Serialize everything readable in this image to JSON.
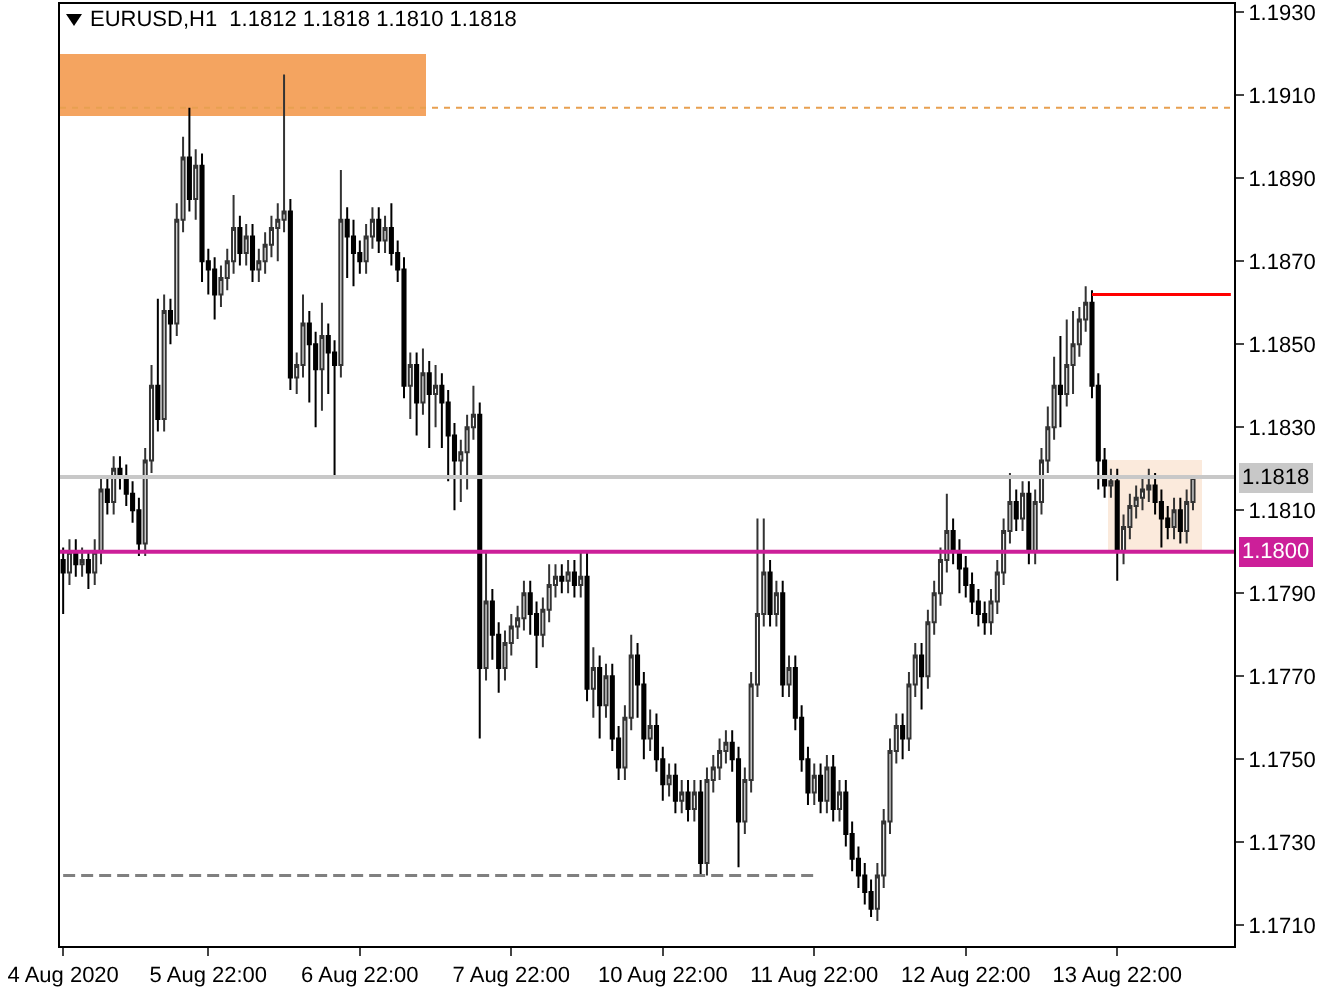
{
  "chart_data": {
    "type": "candlestick",
    "title": "EURUSD,H1  1.1812 1.1818 1.1810 1.1818",
    "categories": [
      "4 Aug 2020",
      null,
      null,
      null,
      null,
      null,
      null,
      null,
      null,
      null,
      null,
      null,
      null,
      null,
      null,
      null,
      null,
      null,
      null,
      null,
      null,
      null,
      null,
      "5 Aug 22:00",
      null,
      null,
      null,
      null,
      null,
      null,
      null,
      null,
      null,
      null,
      null,
      null,
      null,
      null,
      null,
      null,
      null,
      null,
      null,
      null,
      null,
      null,
      null,
      "6 Aug 22:00",
      null,
      null,
      null,
      null,
      null,
      null,
      null,
      null,
      null,
      null,
      null,
      null,
      null,
      null,
      null,
      null,
      null,
      null,
      null,
      null,
      null,
      null,
      null,
      "7 Aug 22:00",
      null,
      null,
      null,
      null,
      null,
      null,
      null,
      null,
      null,
      null,
      null,
      null,
      null,
      null,
      null,
      null,
      null,
      null,
      null,
      null,
      null,
      null,
      null,
      "10 Aug 22:00",
      null,
      null,
      null,
      null,
      null,
      null,
      null,
      null,
      null,
      null,
      null,
      null,
      null,
      null,
      null,
      null,
      null,
      null,
      null,
      null,
      null,
      null,
      null,
      "11 Aug 22:00",
      null,
      null,
      null,
      null,
      null,
      null,
      null,
      null,
      null,
      null,
      null,
      null,
      null,
      null,
      null,
      null,
      null,
      null,
      null,
      null,
      null,
      null,
      null,
      "12 Aug 22:00",
      null,
      null,
      null,
      null,
      null,
      null,
      null,
      null,
      null,
      null,
      null,
      null,
      null,
      null,
      null,
      null,
      null,
      null,
      null,
      null,
      null,
      null,
      null,
      "13 Aug 22:00",
      null,
      null,
      null,
      null,
      null,
      null,
      null,
      null,
      null,
      null,
      null,
      null,
      null,
      null,
      null,
      null,
      null,
      null
    ],
    "ohlc": [
      [
        1.1798,
        1.1801,
        1.1785,
        1.1795
      ],
      [
        1.1795,
        1.1803,
        1.1792,
        1.18
      ],
      [
        1.18,
        1.1803,
        1.1794,
        1.1797
      ],
      [
        1.1797,
        1.1801,
        1.1794,
        1.1798
      ],
      [
        1.1798,
        1.18,
        1.1791,
        1.1795
      ],
      [
        1.1795,
        1.1803,
        1.1792,
        1.18
      ],
      [
        1.18,
        1.1818,
        1.1797,
        1.1815
      ],
      [
        1.1815,
        1.1818,
        1.1809,
        1.1812
      ],
      [
        1.1812,
        1.1823,
        1.1809,
        1.182
      ],
      [
        1.182,
        1.1823,
        1.1815,
        1.1818
      ],
      [
        1.1818,
        1.1821,
        1.1811,
        1.1814
      ],
      [
        1.1814,
        1.1817,
        1.1807,
        1.181
      ],
      [
        1.181,
        1.1813,
        1.1799,
        1.1802
      ],
      [
        1.1802,
        1.1825,
        1.1799,
        1.1822
      ],
      [
        1.1822,
        1.1845,
        1.1819,
        1.184
      ],
      [
        1.184,
        1.1861,
        1.1829,
        1.1832
      ],
      [
        1.1832,
        1.1862,
        1.1829,
        1.1858
      ],
      [
        1.1858,
        1.1861,
        1.185,
        1.1855
      ],
      [
        1.1855,
        1.1884,
        1.1852,
        1.188
      ],
      [
        1.188,
        1.19,
        1.1877,
        1.1895
      ],
      [
        1.1895,
        1.1907,
        1.1882,
        1.1885
      ],
      [
        1.1885,
        1.1897,
        1.188,
        1.1893
      ],
      [
        1.1893,
        1.1896,
        1.1865,
        1.187
      ],
      [
        1.187,
        1.1873,
        1.1862,
        1.1868
      ],
      [
        1.1868,
        1.1871,
        1.1856,
        1.1862
      ],
      [
        1.1862,
        1.1869,
        1.1859,
        1.1866
      ],
      [
        1.1866,
        1.1873,
        1.1863,
        1.187
      ],
      [
        1.187,
        1.1886,
        1.1867,
        1.1878
      ],
      [
        1.1878,
        1.1881,
        1.1869,
        1.1872
      ],
      [
        1.1872,
        1.1879,
        1.1869,
        1.1876
      ],
      [
        1.1876,
        1.1879,
        1.1865,
        1.1868
      ],
      [
        1.1868,
        1.1873,
        1.1865,
        1.187
      ],
      [
        1.187,
        1.1877,
        1.1867,
        1.1874
      ],
      [
        1.1874,
        1.1881,
        1.1871,
        1.1878
      ],
      [
        1.1878,
        1.1884,
        1.187,
        1.188
      ],
      [
        1.188,
        1.1915,
        1.1877,
        1.1882
      ],
      [
        1.1882,
        1.1885,
        1.1839,
        1.1842
      ],
      [
        1.1842,
        1.1848,
        1.1838,
        1.1845
      ],
      [
        1.1845,
        1.1862,
        1.1842,
        1.1855
      ],
      [
        1.1855,
        1.1858,
        1.1836,
        1.185
      ],
      [
        1.185,
        1.1853,
        1.183,
        1.1844
      ],
      [
        1.1844,
        1.186,
        1.1834,
        1.1852
      ],
      [
        1.1852,
        1.1855,
        1.1838,
        1.1848
      ],
      [
        1.1848,
        1.1851,
        1.1818,
        1.1845
      ],
      [
        1.1845,
        1.1892,
        1.1842,
        1.188
      ],
      [
        1.188,
        1.1883,
        1.1866,
        1.1876
      ],
      [
        1.1876,
        1.188,
        1.1864,
        1.1872
      ],
      [
        1.1872,
        1.1875,
        1.1867,
        1.187
      ],
      [
        1.187,
        1.1879,
        1.1867,
        1.1876
      ],
      [
        1.1876,
        1.1883,
        1.1873,
        1.188
      ],
      [
        1.188,
        1.1883,
        1.1872,
        1.1875
      ],
      [
        1.1875,
        1.1881,
        1.1872,
        1.1878
      ],
      [
        1.1878,
        1.1884,
        1.1869,
        1.1872
      ],
      [
        1.1872,
        1.1875,
        1.1865,
        1.1868
      ],
      [
        1.1868,
        1.1871,
        1.1837,
        1.184
      ],
      [
        1.184,
        1.1848,
        1.1832,
        1.1845
      ],
      [
        1.1845,
        1.1848,
        1.1828,
        1.1836
      ],
      [
        1.1836,
        1.1849,
        1.1833,
        1.1843
      ],
      [
        1.1843,
        1.1846,
        1.1825,
        1.1838
      ],
      [
        1.1838,
        1.1845,
        1.183,
        1.184
      ],
      [
        1.184,
        1.1843,
        1.1825,
        1.1836
      ],
      [
        1.1836,
        1.1839,
        1.1817,
        1.1828
      ],
      [
        1.1828,
        1.1831,
        1.181,
        1.1822
      ],
      [
        1.1822,
        1.1827,
        1.1812,
        1.1824
      ],
      [
        1.1824,
        1.1833,
        1.1815,
        1.183
      ],
      [
        1.183,
        1.184,
        1.1827,
        1.1833
      ],
      [
        1.1833,
        1.1836,
        1.1755,
        1.1772
      ],
      [
        1.1772,
        1.18,
        1.1769,
        1.1788
      ],
      [
        1.1788,
        1.1791,
        1.1774,
        1.178
      ],
      [
        1.178,
        1.1783,
        1.1766,
        1.1772
      ],
      [
        1.1772,
        1.1781,
        1.1769,
        1.1778
      ],
      [
        1.1778,
        1.1785,
        1.1775,
        1.1782
      ],
      [
        1.1782,
        1.1787,
        1.1779,
        1.1784
      ],
      [
        1.1784,
        1.1793,
        1.1781,
        1.179
      ],
      [
        1.179,
        1.1793,
        1.178,
        1.1785
      ],
      [
        1.1785,
        1.1788,
        1.1772,
        1.178
      ],
      [
        1.178,
        1.1789,
        1.1777,
        1.1786
      ],
      [
        1.1786,
        1.1797,
        1.1783,
        1.1792
      ],
      [
        1.1792,
        1.1797,
        1.1789,
        1.1794
      ],
      [
        1.1794,
        1.1797,
        1.179,
        1.1793
      ],
      [
        1.1793,
        1.1798,
        1.179,
        1.1795
      ],
      [
        1.1795,
        1.1798,
        1.1789,
        1.1792
      ],
      [
        1.1792,
        1.18,
        1.1789,
        1.1794
      ],
      [
        1.1794,
        1.18,
        1.1764,
        1.1767
      ],
      [
        1.1767,
        1.1777,
        1.176,
        1.1772
      ],
      [
        1.1772,
        1.1775,
        1.1755,
        1.1763
      ],
      [
        1.1763,
        1.1773,
        1.176,
        1.177
      ],
      [
        1.177,
        1.1773,
        1.1752,
        1.1755
      ],
      [
        1.1755,
        1.1758,
        1.1745,
        1.1748
      ],
      [
        1.1748,
        1.1763,
        1.1745,
        1.176
      ],
      [
        1.176,
        1.178,
        1.1757,
        1.1775
      ],
      [
        1.1775,
        1.1778,
        1.176,
        1.1768
      ],
      [
        1.1768,
        1.1771,
        1.175,
        1.1755
      ],
      [
        1.1755,
        1.1762,
        1.1752,
        1.1758
      ],
      [
        1.1758,
        1.1761,
        1.1747,
        1.175
      ],
      [
        1.175,
        1.1753,
        1.174,
        1.1744
      ],
      [
        1.1744,
        1.1749,
        1.1741,
        1.1746
      ],
      [
        1.1746,
        1.1749,
        1.1737,
        1.174
      ],
      [
        1.174,
        1.1745,
        1.1737,
        1.1742
      ],
      [
        1.1742,
        1.1745,
        1.1735,
        1.1738
      ],
      [
        1.1738,
        1.1745,
        1.1735,
        1.1742
      ],
      [
        1.1742,
        1.1745,
        1.1722,
        1.1725
      ],
      [
        1.1725,
        1.1748,
        1.1722,
        1.1745
      ],
      [
        1.1745,
        1.1751,
        1.1742,
        1.1748
      ],
      [
        1.1748,
        1.1755,
        1.1745,
        1.1752
      ],
      [
        1.1752,
        1.1757,
        1.1749,
        1.1754
      ],
      [
        1.1754,
        1.1757,
        1.1747,
        1.175
      ],
      [
        1.175,
        1.1753,
        1.1724,
        1.1735
      ],
      [
        1.1735,
        1.1748,
        1.1732,
        1.1745
      ],
      [
        1.1745,
        1.1771,
        1.1742,
        1.1768
      ],
      [
        1.1768,
        1.1808,
        1.1765,
        1.1785
      ],
      [
        1.1785,
        1.1808,
        1.1782,
        1.1795
      ],
      [
        1.1795,
        1.1798,
        1.1782,
        1.1785
      ],
      [
        1.1785,
        1.1793,
        1.1782,
        1.179
      ],
      [
        1.179,
        1.1793,
        1.1765,
        1.1768
      ],
      [
        1.1768,
        1.1775,
        1.1765,
        1.1772
      ],
      [
        1.1772,
        1.1775,
        1.1757,
        1.176
      ],
      [
        1.176,
        1.1763,
        1.1747,
        1.175
      ],
      [
        1.175,
        1.1753,
        1.1739,
        1.1742
      ],
      [
        1.1742,
        1.1749,
        1.1739,
        1.1746
      ],
      [
        1.1746,
        1.1749,
        1.1737,
        1.174
      ],
      [
        1.174,
        1.1751,
        1.1737,
        1.1748
      ],
      [
        1.1748,
        1.1751,
        1.1735,
        1.1738
      ],
      [
        1.1738,
        1.1745,
        1.1735,
        1.1742
      ],
      [
        1.1742,
        1.1745,
        1.1729,
        1.1732
      ],
      [
        1.1732,
        1.1735,
        1.1723,
        1.1726
      ],
      [
        1.1726,
        1.1729,
        1.1719,
        1.1722
      ],
      [
        1.1722,
        1.1725,
        1.1715,
        1.1718
      ],
      [
        1.1718,
        1.1721,
        1.1712,
        1.1714
      ],
      [
        1.1714,
        1.1725,
        1.1711,
        1.1722
      ],
      [
        1.1722,
        1.1738,
        1.1719,
        1.1735
      ],
      [
        1.1735,
        1.1755,
        1.1732,
        1.1752
      ],
      [
        1.1752,
        1.1761,
        1.1749,
        1.1758
      ],
      [
        1.1758,
        1.1761,
        1.175,
        1.1755
      ],
      [
        1.1755,
        1.1771,
        1.1752,
        1.1768
      ],
      [
        1.1768,
        1.1778,
        1.1765,
        1.1775
      ],
      [
        1.1775,
        1.1778,
        1.1762,
        1.177
      ],
      [
        1.177,
        1.1786,
        1.1767,
        1.1783
      ],
      [
        1.1783,
        1.1793,
        1.178,
        1.179
      ],
      [
        1.179,
        1.1801,
        1.1787,
        1.1798
      ],
      [
        1.1798,
        1.1814,
        1.1795,
        1.1805
      ],
      [
        1.1805,
        1.1808,
        1.1797,
        1.18
      ],
      [
        1.18,
        1.1803,
        1.179,
        1.1796
      ],
      [
        1.1796,
        1.1799,
        1.1789,
        1.1792
      ],
      [
        1.1792,
        1.1795,
        1.1785,
        1.1788
      ],
      [
        1.1788,
        1.1791,
        1.1782,
        1.1785
      ],
      [
        1.1785,
        1.1788,
        1.178,
        1.1783
      ],
      [
        1.1783,
        1.1791,
        1.178,
        1.1788
      ],
      [
        1.1788,
        1.1798,
        1.1785,
        1.1795
      ],
      [
        1.1795,
        1.1808,
        1.1792,
        1.1805
      ],
      [
        1.1805,
        1.1819,
        1.1802,
        1.1812
      ],
      [
        1.1812,
        1.1815,
        1.1805,
        1.1808
      ],
      [
        1.1808,
        1.1817,
        1.1805,
        1.1814
      ],
      [
        1.1814,
        1.1817,
        1.1797,
        1.18
      ],
      [
        1.18,
        1.1815,
        1.1797,
        1.1812
      ],
      [
        1.1812,
        1.1825,
        1.1809,
        1.1822
      ],
      [
        1.1822,
        1.1835,
        1.1819,
        1.183
      ],
      [
        1.183,
        1.1847,
        1.1827,
        1.184
      ],
      [
        1.184,
        1.1852,
        1.183,
        1.1838
      ],
      [
        1.1838,
        1.1856,
        1.1835,
        1.1845
      ],
      [
        1.1845,
        1.1858,
        1.1838,
        1.185
      ],
      [
        1.185,
        1.1859,
        1.1847,
        1.1856
      ],
      [
        1.1856,
        1.1864,
        1.1853,
        1.186
      ],
      [
        1.186,
        1.1863,
        1.1837,
        1.184
      ],
      [
        1.184,
        1.1843,
        1.1815,
        1.1822
      ],
      [
        1.1822,
        1.1825,
        1.1813,
        1.1816
      ],
      [
        1.1816,
        1.182,
        1.1813,
        1.1817
      ],
      [
        1.1817,
        1.182,
        1.1793,
        1.18
      ],
      [
        1.18,
        1.1809,
        1.1797,
        1.1806
      ],
      [
        1.1806,
        1.1814,
        1.1803,
        1.1811
      ],
      [
        1.1811,
        1.1816,
        1.1808,
        1.1813
      ],
      [
        1.1813,
        1.1818,
        1.181,
        1.1815
      ],
      [
        1.1815,
        1.182,
        1.1812,
        1.1816
      ],
      [
        1.1816,
        1.1819,
        1.1809,
        1.1812
      ],
      [
        1.1812,
        1.1815,
        1.1801,
        1.1808
      ],
      [
        1.1808,
        1.1811,
        1.1803,
        1.1806
      ],
      [
        1.1806,
        1.1813,
        1.1803,
        1.181
      ],
      [
        1.181,
        1.1813,
        1.1802,
        1.1805
      ],
      [
        1.1805,
        1.1815,
        1.1802,
        1.1812
      ],
      [
        1.1812,
        1.1818,
        1.181,
        1.1818
      ],
      null,
      null,
      null,
      null,
      null,
      null
    ],
    "series": [
      {
        "type": "line",
        "color": "#ff0000",
        "values": [
          null,
          null,
          null,
          null,
          null,
          null,
          null,
          null,
          null,
          null,
          null,
          null,
          null,
          null,
          null,
          null,
          null,
          null,
          null,
          null,
          null,
          null,
          null,
          null,
          null,
          null,
          null,
          null,
          null,
          null,
          null,
          null,
          null,
          null,
          null,
          null,
          null,
          null,
          null,
          null,
          null,
          null,
          null,
          null,
          null,
          null,
          null,
          null,
          null,
          null,
          null,
          null,
          null,
          null,
          null,
          null,
          null,
          null,
          null,
          null,
          null,
          null,
          null,
          null,
          null,
          null,
          null,
          null,
          null,
          null,
          null,
          null,
          null,
          null,
          null,
          null,
          null,
          null,
          null,
          null,
          null,
          null,
          null,
          null,
          null,
          null,
          null,
          null,
          null,
          null,
          null,
          null,
          null,
          null,
          null,
          null,
          null,
          null,
          null,
          null,
          null,
          null,
          null,
          null,
          null,
          null,
          null,
          null,
          null,
          null,
          null,
          null,
          null,
          null,
          null,
          null,
          null,
          null,
          null,
          null,
          null,
          null,
          null,
          null,
          null,
          null,
          null,
          null,
          null,
          null,
          null,
          null,
          null,
          null,
          null,
          null,
          null,
          null,
          null,
          null,
          null,
          null,
          null,
          null,
          null,
          null,
          null,
          null,
          null,
          null,
          null,
          null,
          null,
          null,
          null,
          null,
          null,
          null,
          null,
          null,
          null,
          null,
          null,
          1.1862,
          1.1862,
          1.1862,
          1.1862,
          1.1862,
          1.1862,
          1.1862,
          1.1862,
          1.1862,
          1.1862,
          1.1862,
          1.1862,
          1.1862,
          1.1862,
          1.1862,
          1.1862,
          1.1862,
          1.1862,
          1.1862,
          1.1862,
          1.1862,
          1.1862,
          1.1862
        ]
      },
      {
        "type": "line",
        "color": "#808080",
        "line_style": "dashed",
        "values": [
          1.1722,
          1.1722,
          1.1722,
          1.1722,
          1.1722,
          1.1722,
          1.1722,
          1.1722,
          1.1722,
          1.1722,
          1.1722,
          1.1722,
          1.1722,
          1.1722,
          1.1722,
          1.1722,
          1.1722,
          1.1722,
          1.1722,
          1.1722,
          1.1722,
          1.1722,
          1.1722,
          1.1722,
          1.1722,
          1.1722,
          1.1722,
          1.1722,
          1.1722,
          1.1722,
          1.1722,
          1.1722,
          1.1722,
          1.1722,
          1.1722,
          1.1722,
          1.1722,
          1.1722,
          1.1722,
          1.1722,
          1.1722,
          1.1722,
          1.1722,
          1.1722,
          1.1722,
          1.1722,
          1.1722,
          1.1722,
          1.1722,
          1.1722,
          1.1722,
          1.1722,
          1.1722,
          1.1722,
          1.1722,
          1.1722,
          1.1722,
          1.1722,
          1.1722,
          1.1722,
          1.1722,
          1.1722,
          1.1722,
          1.1722,
          1.1722,
          1.1722,
          1.1722,
          1.1722,
          1.1722,
          1.1722,
          1.1722,
          1.1722,
          1.1722,
          1.1722,
          1.1722,
          1.1722,
          1.1722,
          1.1722,
          1.1722,
          1.1722,
          1.1722,
          1.1722,
          1.1722,
          1.1722,
          1.1722,
          1.1722,
          1.1722,
          1.1722,
          1.1722,
          1.1722,
          1.1722,
          1.1722,
          1.1722,
          1.1722,
          1.1722,
          1.1722,
          1.1722,
          1.1722,
          1.1722,
          1.1722,
          1.1722,
          1.1722,
          1.1722,
          1.1722,
          1.1722,
          1.1722,
          1.1722,
          1.1722,
          1.1722,
          1.1722,
          1.1722,
          1.1722,
          1.1722,
          1.1722,
          1.1722,
          1.1722,
          1.1722,
          1.1722,
          1.1722,
          1.1722,
          null,
          null,
          null,
          null,
          null,
          null,
          null,
          null,
          null,
          null,
          null,
          null,
          null,
          null,
          null,
          null,
          null,
          null,
          null,
          null,
          null,
          null,
          null,
          null,
          null,
          null,
          null,
          null,
          null,
          null,
          null,
          null,
          null,
          null,
          null,
          null,
          null,
          null,
          null,
          null,
          null,
          null,
          null,
          null,
          null,
          null,
          null,
          null,
          null,
          null,
          null,
          null,
          null,
          null,
          null,
          null,
          null,
          null,
          null,
          null,
          null,
          null,
          null,
          null,
          null,
          null
        ]
      }
    ],
    "ref_lines": [
      {
        "axis": "y",
        "value": 1.18,
        "label": "1.1800",
        "color": "#cc1f99"
      },
      {
        "axis": "y",
        "value": 1.1818,
        "label": "1.1818",
        "color": "#c8c8c8"
      },
      {
        "axis": "y",
        "value": 1.1907,
        "color": "#e8a050",
        "line_style": "dotted"
      }
    ],
    "ylim": [
      1.1705,
      1.1932
    ],
    "yticks": [
      {
        "value": 1.171,
        "label": "1.1710"
      },
      {
        "value": 1.173,
        "label": "1.1730"
      },
      {
        "value": 1.175,
        "label": "1.1750"
      },
      {
        "value": 1.177,
        "label": "1.1770"
      },
      {
        "value": 1.179,
        "label": "1.1790"
      },
      {
        "value": 1.181,
        "label": "1.1810"
      },
      {
        "value": 1.183,
        "label": "1.1830"
      },
      {
        "value": 1.185,
        "label": "1.1850"
      },
      {
        "value": 1.187,
        "label": "1.1870"
      },
      {
        "value": 1.189,
        "label": "1.1890"
      },
      {
        "value": 1.191,
        "label": "1.1910"
      },
      {
        "value": 1.193,
        "label": "1.1930"
      }
    ]
  }
}
